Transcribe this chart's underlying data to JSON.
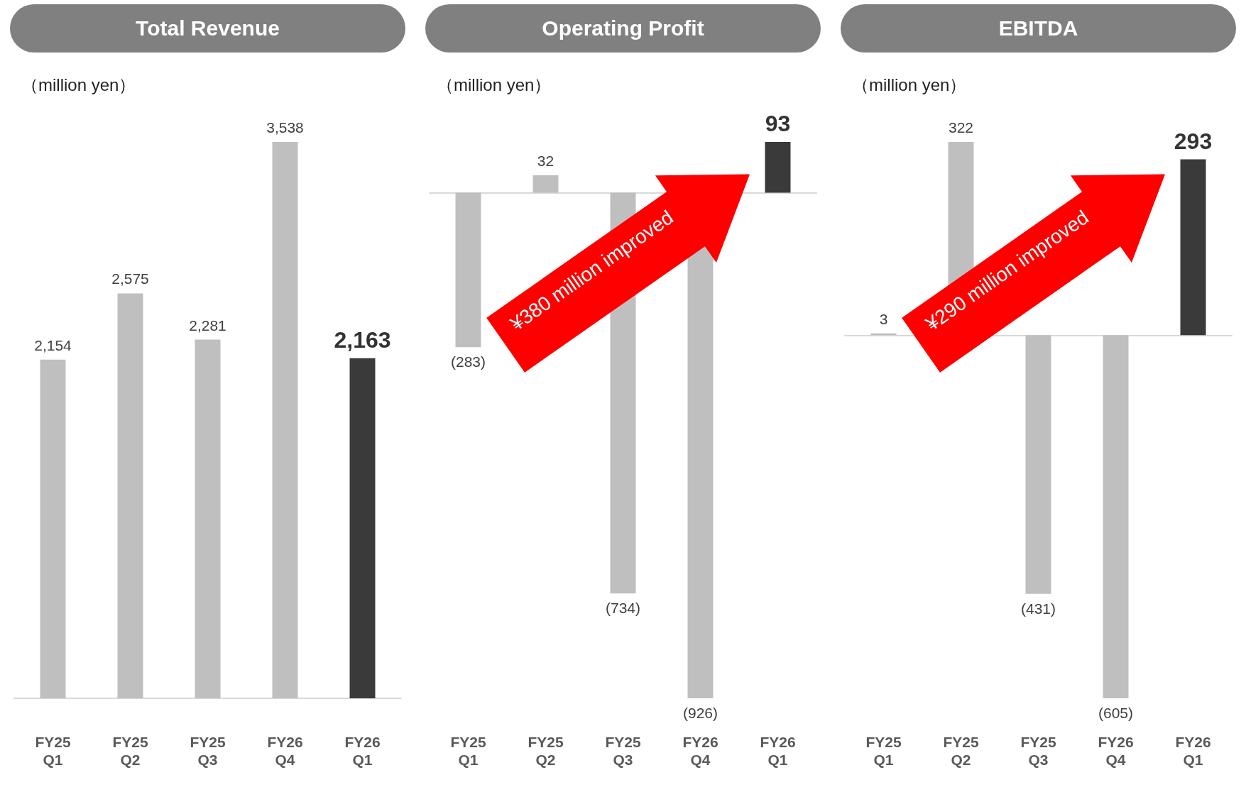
{
  "chart_data": [
    {
      "type": "bar",
      "title": "Total Revenue",
      "ylabel": "（million yen）",
      "categories": [
        "FY25 Q1",
        "FY25 Q2",
        "FY25 Q3",
        "FY26 Q4",
        "FY26 Q1"
      ],
      "values": [
        2154,
        2575,
        2281,
        3538,
        2163
      ],
      "colors": [
        "#bfbfbf",
        "#bfbfbf",
        "#bfbfbf",
        "#bfbfbf",
        "#3a3a3a"
      ],
      "value_labels": [
        "2,154",
        "2,575",
        "2,281",
        "3,538",
        "2,163"
      ],
      "tick_labels": "x"
    },
    {
      "type": "bar",
      "title": "Operating Profit",
      "ylabel": "（million yen）",
      "categories": [
        "FY25 Q1",
        "FY25 Q2",
        "FY25 Q3",
        "FY26 Q4",
        "FY26 Q1"
      ],
      "values": [
        -283,
        32,
        -734,
        -926,
        93
      ],
      "colors": [
        "#bfbfbf",
        "#bfbfbf",
        "#bfbfbf",
        "#bfbfbf",
        "#3a3a3a"
      ],
      "value_labels": [
        "(283)",
        "32",
        "(734)",
        "(926)",
        "93"
      ],
      "tick_labels": "x",
      "annotations": [
        "¥380 million improved"
      ]
    },
    {
      "type": "bar",
      "title": "EBITDA",
      "ylabel": "（million yen）",
      "categories": [
        "FY25 Q1",
        "FY25 Q2",
        "FY25 Q3",
        "FY26 Q4",
        "FY26 Q1"
      ],
      "values": [
        3,
        322,
        -431,
        -605,
        293
      ],
      "colors": [
        "#bfbfbf",
        "#bfbfbf",
        "#bfbfbf",
        "#bfbfbf",
        "#3a3a3a"
      ],
      "value_labels": [
        "3",
        "322",
        "(431)",
        "(605)",
        "293"
      ],
      "tick_labels": "x",
      "annotations": [
        "¥290 million improved"
      ]
    }
  ]
}
